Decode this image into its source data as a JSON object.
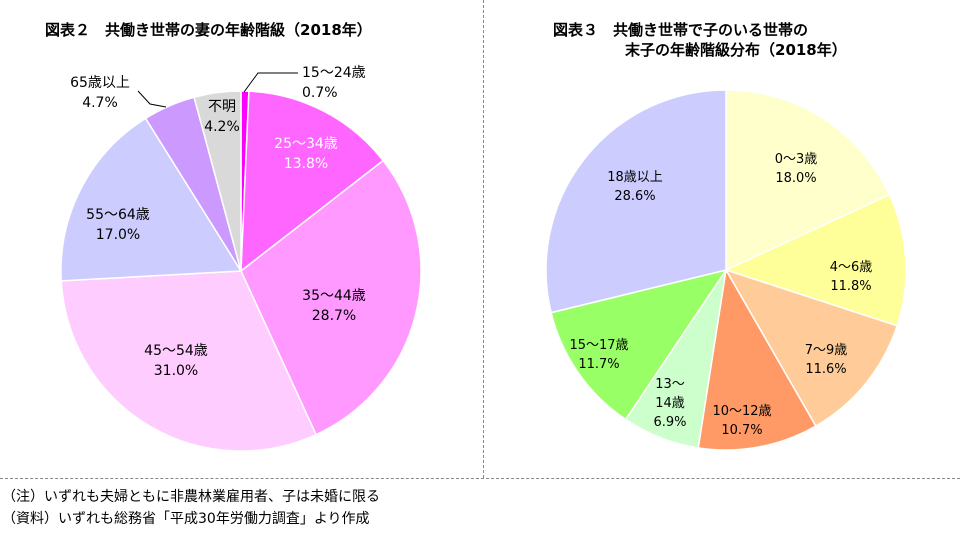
{
  "titles": {
    "left": "図表２　共働き世帯の妻の年齢階級（2018年）",
    "right_line1": "図表３　共働き世帯で子のいる世帯の",
    "right_line2": "末子の年齢階級分布（2018年）"
  },
  "notes": {
    "note": "（注）いずれも夫婦ともに非農林業雇用者、子は未婚に限る",
    "source": "（資料）いずれも総務省「平成30年労働力調査」より作成"
  },
  "chart_data": [
    {
      "type": "pie",
      "title": "図表２　共働き世帯の妻の年齢階級（2018年）",
      "slices": [
        {
          "label": "15～24歳",
          "value": "0.7%",
          "pct": 0.7,
          "color": "#ff00ff",
          "label_color": "#000000"
        },
        {
          "label": "25～34歳",
          "value": "13.8%",
          "pct": 13.8,
          "color": "#ff66ff",
          "label_color": "#ffffff"
        },
        {
          "label": "35～44歳",
          "value": "28.7%",
          "pct": 28.7,
          "color": "#ff99ff",
          "label_color": "#000000"
        },
        {
          "label": "45～54歳",
          "value": "31.0%",
          "pct": 31.0,
          "color": "#ffccff",
          "label_color": "#000000"
        },
        {
          "label": "55～64歳",
          "value": "17.0%",
          "pct": 17.0,
          "color": "#ccccff",
          "label_color": "#000000"
        },
        {
          "label": "65歳以上",
          "value": "4.7%",
          "pct": 4.7,
          "color": "#cc99ff",
          "label_color": "#000000"
        },
        {
          "label": "不明",
          "value": "4.2%",
          "pct": 4.2,
          "color": "#d9d9d9",
          "label_color": "#000000"
        }
      ]
    },
    {
      "type": "pie",
      "title": "図表３　共働き世帯で子のいる世帯の末子の年齢階級分布（2018年）",
      "slices": [
        {
          "label": "0～3歳",
          "value": "18.0%",
          "pct": 18.0,
          "color": "#ffffcc",
          "label_color": "#000000"
        },
        {
          "label": "4～6歳",
          "value": "11.8%",
          "pct": 11.8,
          "color": "#ffff99",
          "label_color": "#000000"
        },
        {
          "label": "7～9歳",
          "value": "11.6%",
          "pct": 11.6,
          "color": "#ffcc99",
          "label_color": "#000000"
        },
        {
          "label": "10～12歳",
          "value": "10.7%",
          "pct": 10.7,
          "color": "#ff9966",
          "label_color": "#000000"
        },
        {
          "label": "13～14歳",
          "value": "6.9%",
          "pct": 6.9,
          "color": "#ccffcc",
          "label_color": "#000000"
        },
        {
          "label": "15～17歳",
          "value": "11.7%",
          "pct": 11.7,
          "color": "#99ff66",
          "label_color": "#000000"
        },
        {
          "label": "18歳以上",
          "value": "28.6%",
          "pct": 28.6,
          "color": "#ccccff",
          "label_color": "#000000"
        }
      ]
    }
  ]
}
